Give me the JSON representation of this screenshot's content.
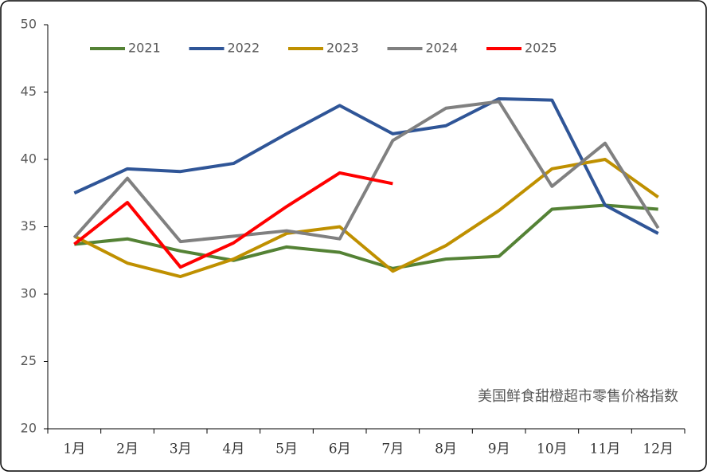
{
  "chart_data": {
    "type": "line",
    "annotation": "美国鲜食甜橙超市零售价格指数",
    "categories": [
      "1月",
      "2月",
      "3月",
      "4月",
      "5月",
      "6月",
      "7月",
      "8月",
      "9月",
      "10月",
      "11月",
      "12月"
    ],
    "ylim": [
      20,
      50
    ],
    "yticks": [
      20,
      25,
      30,
      35,
      40,
      45,
      50
    ],
    "series": [
      {
        "name": "2021",
        "color": "#548235",
        "values": [
          33.7,
          34.1,
          33.2,
          32.5,
          33.5,
          33.1,
          31.9,
          32.6,
          32.8,
          36.3,
          36.6,
          36.3
        ]
      },
      {
        "name": "2022",
        "color": "#2f5597",
        "values": [
          37.5,
          39.3,
          39.1,
          39.7,
          41.9,
          44.0,
          41.9,
          42.5,
          44.5,
          44.4,
          36.6,
          34.5
        ]
      },
      {
        "name": "2023",
        "color": "#bf9000",
        "values": [
          34.3,
          32.3,
          31.3,
          32.6,
          34.5,
          35.0,
          31.7,
          33.6,
          36.2,
          39.3,
          40.0,
          37.2
        ]
      },
      {
        "name": "2024",
        "color": "#808080",
        "values": [
          34.2,
          38.6,
          33.9,
          34.3,
          34.7,
          34.1,
          41.4,
          43.8,
          44.3,
          38.0,
          41.2,
          34.9
        ]
      },
      {
        "name": "2025",
        "color": "#ff0000",
        "values": [
          33.7,
          36.8,
          32.0,
          33.8,
          36.5,
          39.0,
          38.2,
          null,
          null,
          null,
          null,
          null
        ]
      }
    ]
  }
}
